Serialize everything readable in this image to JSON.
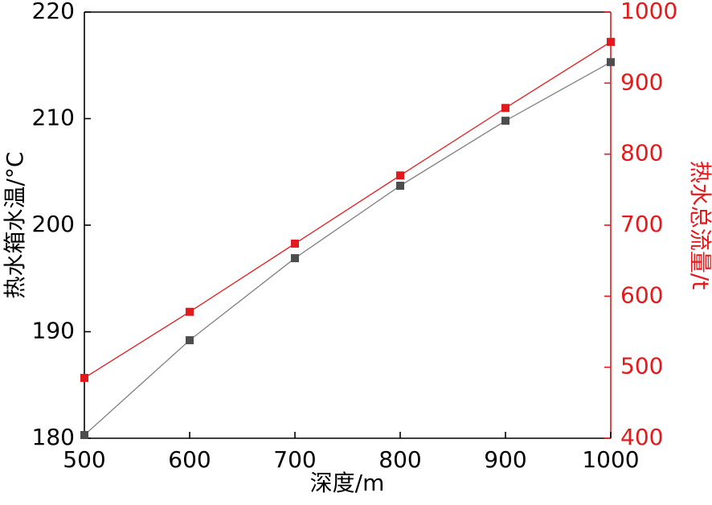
{
  "chart_data": {
    "type": "line",
    "title": "",
    "xlabel": "深度/m",
    "ylabel_left": "热水箱水温/°C",
    "ylabel_right": "热水总流量/t",
    "x": [
      500,
      600,
      700,
      800,
      900,
      1000
    ],
    "series": [
      {
        "name": "热水箱水温",
        "axis": "left",
        "marker": "square",
        "marker_color": "#4d4d4d",
        "line_color": "#808080",
        "values": [
          180.3,
          189.2,
          196.9,
          203.7,
          209.8,
          215.3
        ]
      },
      {
        "name": "热水总流量",
        "axis": "right",
        "marker": "square",
        "marker_color": "#e31a1c",
        "line_color": "#e31a1c",
        "values": [
          485,
          578,
          674,
          770,
          865,
          958
        ]
      }
    ],
    "xlim": [
      500,
      1000
    ],
    "xticks": [
      500,
      600,
      700,
      800,
      900,
      1000
    ],
    "ylim_left": [
      180,
      220
    ],
    "yticks_left": [
      180,
      190,
      200,
      210,
      220
    ],
    "ylim_right": [
      400,
      1000
    ],
    "yticks_right": [
      400,
      500,
      600,
      700,
      800,
      900,
      1000
    ],
    "grid": false,
    "legend": "none"
  },
  "colors": {
    "left_axis": "#000000",
    "right_axis": "#e31a1c",
    "background": "#ffffff"
  }
}
